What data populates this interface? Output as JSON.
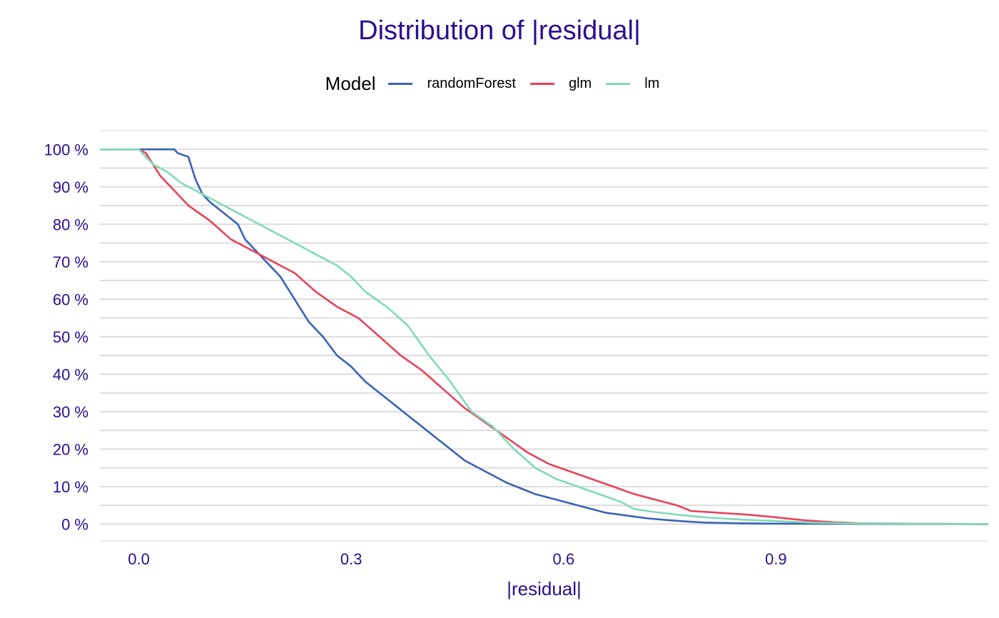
{
  "title": "Distribution of |residual|",
  "legend": {
    "title": "Model",
    "items": [
      {
        "label": "randomForest",
        "color": "#3a63b5"
      },
      {
        "label": "glm",
        "color": "#e8435a"
      },
      {
        "label": "lm",
        "color": "#7fdbb6"
      }
    ]
  },
  "chart_data": {
    "type": "line",
    "title": "Distribution of |residual|",
    "xlabel": "|residual|",
    "ylabel": "",
    "xlim": [
      -0.055,
      1.2
    ],
    "ylim": [
      -0.045,
      1.05
    ],
    "x_ticks": [
      0.0,
      0.3,
      0.6,
      0.9
    ],
    "x_tick_labels": [
      "0.0",
      "0.3",
      "0.6",
      "0.9"
    ],
    "y_ticks": [
      0,
      0.1,
      0.2,
      0.3,
      0.4,
      0.5,
      0.6,
      0.7,
      0.8,
      0.9,
      1.0
    ],
    "y_tick_labels": [
      "0 %",
      "10 %",
      "20 %",
      "30 %",
      "40 %",
      "50 %",
      "60 %",
      "70 %",
      "80 %",
      "90 %",
      "100 %"
    ],
    "grid": true,
    "legend_position": "top",
    "series": [
      {
        "name": "randomForest",
        "color": "#3a63b5",
        "x": [
          -0.06,
          0.0,
          0.05,
          0.055,
          0.07,
          0.08,
          0.09,
          0.1,
          0.12,
          0.14,
          0.15,
          0.16,
          0.18,
          0.2,
          0.22,
          0.24,
          0.26,
          0.28,
          0.3,
          0.32,
          0.34,
          0.36,
          0.38,
          0.4,
          0.42,
          0.44,
          0.46,
          0.48,
          0.5,
          0.52,
          0.54,
          0.56,
          0.58,
          0.6,
          0.62,
          0.64,
          0.66,
          0.68,
          0.7,
          0.72,
          0.75,
          0.78,
          0.8,
          0.85,
          0.9,
          1.2
        ],
        "y": [
          1.0,
          1.0,
          1.0,
          0.99,
          0.98,
          0.92,
          0.88,
          0.86,
          0.83,
          0.8,
          0.76,
          0.74,
          0.7,
          0.66,
          0.6,
          0.54,
          0.5,
          0.45,
          0.42,
          0.38,
          0.35,
          0.32,
          0.29,
          0.26,
          0.23,
          0.2,
          0.17,
          0.15,
          0.13,
          0.11,
          0.095,
          0.08,
          0.07,
          0.06,
          0.05,
          0.04,
          0.03,
          0.025,
          0.02,
          0.015,
          0.01,
          0.006,
          0.004,
          0.002,
          0.001,
          0.0
        ]
      },
      {
        "name": "glm",
        "color": "#e8435a",
        "x": [
          -0.06,
          0.0,
          0.01,
          0.03,
          0.05,
          0.07,
          0.1,
          0.13,
          0.16,
          0.19,
          0.22,
          0.25,
          0.28,
          0.31,
          0.34,
          0.37,
          0.4,
          0.43,
          0.46,
          0.49,
          0.52,
          0.55,
          0.58,
          0.61,
          0.64,
          0.67,
          0.7,
          0.73,
          0.76,
          0.78,
          0.82,
          0.86,
          0.9,
          0.94,
          0.98,
          1.02,
          1.2
        ],
        "y": [
          1.0,
          1.0,
          0.99,
          0.93,
          0.89,
          0.85,
          0.81,
          0.76,
          0.73,
          0.7,
          0.67,
          0.62,
          0.58,
          0.55,
          0.5,
          0.45,
          0.41,
          0.36,
          0.31,
          0.27,
          0.23,
          0.19,
          0.16,
          0.14,
          0.12,
          0.1,
          0.08,
          0.065,
          0.05,
          0.035,
          0.03,
          0.025,
          0.018,
          0.01,
          0.005,
          0.002,
          0.0
        ]
      },
      {
        "name": "lm",
        "color": "#7fdbb6",
        "x": [
          -0.06,
          0.0,
          0.02,
          0.04,
          0.06,
          0.08,
          0.1,
          0.13,
          0.16,
          0.19,
          0.22,
          0.25,
          0.28,
          0.3,
          0.32,
          0.35,
          0.38,
          0.41,
          0.44,
          0.47,
          0.5,
          0.53,
          0.56,
          0.59,
          0.62,
          0.65,
          0.68,
          0.7,
          0.73,
          0.76,
          0.8,
          0.85,
          0.9,
          0.95,
          1.0,
          1.2
        ],
        "y": [
          1.0,
          1.0,
          0.96,
          0.94,
          0.91,
          0.89,
          0.87,
          0.84,
          0.81,
          0.78,
          0.75,
          0.72,
          0.69,
          0.66,
          0.62,
          0.58,
          0.53,
          0.45,
          0.38,
          0.3,
          0.26,
          0.2,
          0.15,
          0.12,
          0.1,
          0.08,
          0.06,
          0.04,
          0.032,
          0.025,
          0.018,
          0.012,
          0.008,
          0.004,
          0.002,
          0.0
        ]
      }
    ]
  }
}
